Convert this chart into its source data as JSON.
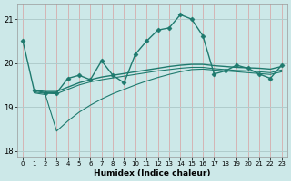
{
  "title": "",
  "xlabel": "Humidex (Indice chaleur)",
  "ylabel": "",
  "bg_color": "#cce8e8",
  "line_color": "#1e7a6e",
  "grid_color_v": "#d8a0a0",
  "grid_color_h": "#b0cccc",
  "xlim": [
    -0.5,
    23.5
  ],
  "ylim": [
    17.85,
    21.35
  ],
  "yticks": [
    18,
    19,
    20,
    21
  ],
  "xticks": [
    0,
    1,
    2,
    3,
    4,
    5,
    6,
    7,
    8,
    9,
    10,
    11,
    12,
    13,
    14,
    15,
    16,
    17,
    18,
    19,
    20,
    21,
    22,
    23
  ],
  "lines": [
    {
      "x": [
        0,
        1,
        2,
        3,
        4,
        5,
        6,
        7,
        8,
        9,
        10,
        11,
        12,
        13,
        14,
        15,
        16,
        17,
        18,
        19,
        20,
        21,
        22,
        23
      ],
      "y": [
        20.5,
        19.38,
        19.32,
        19.32,
        19.65,
        19.72,
        19.62,
        20.05,
        19.72,
        19.55,
        20.2,
        20.5,
        20.75,
        20.8,
        21.1,
        21.0,
        20.62,
        19.75,
        19.82,
        19.95,
        19.88,
        19.75,
        19.65,
        19.95
      ],
      "marker": "D",
      "markersize": 2.5,
      "linewidth": 1.0
    },
    {
      "x": [
        1,
        2,
        3,
        4,
        5,
        6,
        7,
        8,
        9,
        10,
        11,
        12,
        13,
        14,
        15,
        16,
        17,
        18,
        19,
        20,
        21,
        22,
        23
      ],
      "y": [
        19.38,
        19.35,
        19.35,
        19.45,
        19.55,
        19.62,
        19.68,
        19.72,
        19.76,
        19.8,
        19.84,
        19.88,
        19.92,
        19.95,
        19.97,
        19.97,
        19.94,
        19.92,
        19.9,
        19.89,
        19.88,
        19.86,
        19.92
      ],
      "marker": null,
      "markersize": 0,
      "linewidth": 1.0
    },
    {
      "x": [
        1,
        2,
        3,
        4,
        5,
        6,
        7,
        8,
        9,
        10,
        11,
        12,
        13,
        14,
        15,
        16,
        17,
        18,
        19,
        20,
        21,
        22,
        23
      ],
      "y": [
        19.34,
        19.31,
        19.3,
        19.4,
        19.5,
        19.57,
        19.62,
        19.66,
        19.7,
        19.74,
        19.78,
        19.82,
        19.85,
        19.88,
        19.9,
        19.9,
        19.87,
        19.85,
        19.83,
        19.82,
        19.8,
        19.78,
        19.84
      ],
      "marker": null,
      "markersize": 0,
      "linewidth": 0.8
    },
    {
      "x": [
        1,
        2,
        3,
        4,
        5,
        6,
        7,
        8,
        9,
        10,
        11,
        12,
        13,
        14,
        15,
        16,
        17,
        18,
        19,
        20,
        21,
        22,
        23
      ],
      "y": [
        19.32,
        19.28,
        18.45,
        18.68,
        18.88,
        19.04,
        19.18,
        19.3,
        19.4,
        19.5,
        19.59,
        19.67,
        19.74,
        19.8,
        19.85,
        19.86,
        19.84,
        19.82,
        19.8,
        19.78,
        19.76,
        19.74,
        19.8
      ],
      "marker": null,
      "markersize": 0,
      "linewidth": 0.8
    }
  ]
}
